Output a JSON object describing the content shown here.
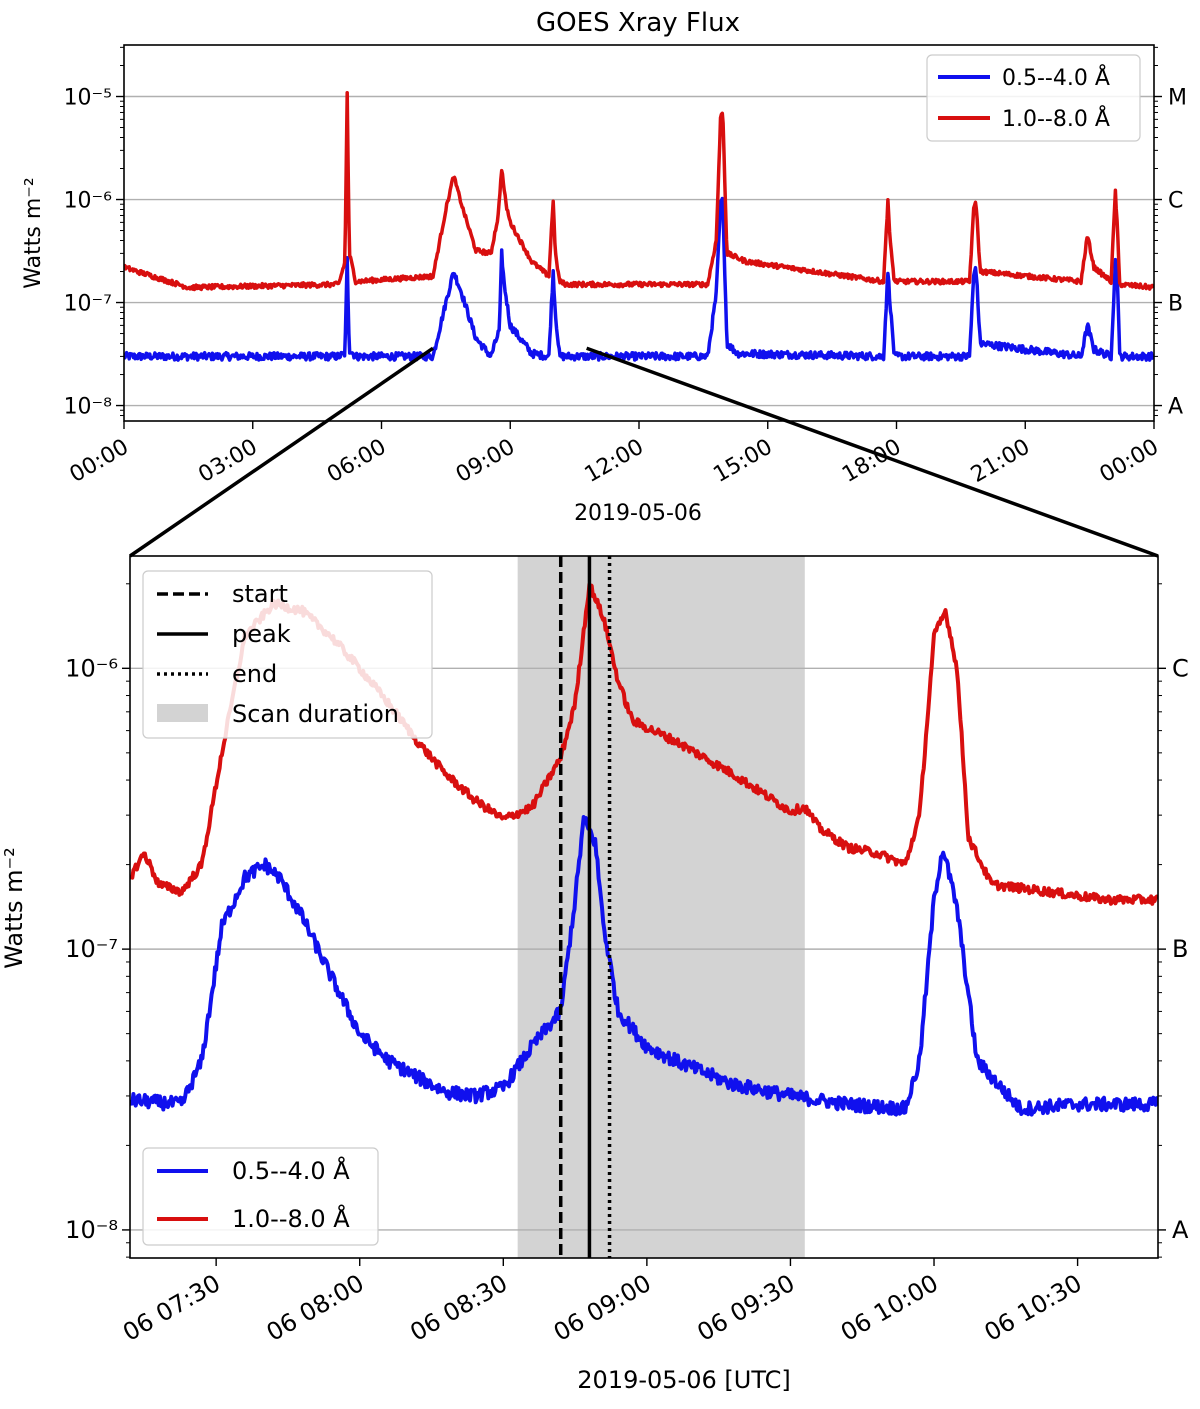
{
  "figure": {
    "colors": {
      "blue": "#1010ee",
      "red": "#d80f0f",
      "grid": "#b0b0b0",
      "shade": "#d3d3d3",
      "axis": "#000000"
    },
    "upper": {
      "title": "GOES Xray Flux",
      "ylabel": "Watts m⁻²",
      "xlabel": "2019-05-06",
      "x_range_hours": [
        0,
        24
      ],
      "y_range_log10": [
        -8.15,
        -4.5
      ],
      "y_ticks": [
        {
          "exp": -8,
          "label": "10⁻⁸"
        },
        {
          "exp": -7,
          "label": "10⁻⁷"
        },
        {
          "exp": -6,
          "label": "10⁻⁶"
        },
        {
          "exp": -5,
          "label": "10⁻⁵"
        }
      ],
      "x_ticks": [
        {
          "h": 0,
          "label": "00:00"
        },
        {
          "h": 3,
          "label": "03:00"
        },
        {
          "h": 6,
          "label": "06:00"
        },
        {
          "h": 9,
          "label": "09:00"
        },
        {
          "h": 12,
          "label": "12:00"
        },
        {
          "h": 15,
          "label": "15:00"
        },
        {
          "h": 18,
          "label": "18:00"
        },
        {
          "h": 21,
          "label": "21:00"
        },
        {
          "h": 24,
          "label": "00:00"
        }
      ],
      "class_ticks": [
        {
          "exp": -8,
          "label": "A"
        },
        {
          "exp": -7,
          "label": "B"
        },
        {
          "exp": -6,
          "label": "C"
        },
        {
          "exp": -5,
          "label": "M"
        }
      ],
      "legend": {
        "placement": "top-right",
        "entries": [
          "0.5--4.0 Å",
          "1.0--8.0 Å"
        ]
      }
    },
    "lower": {
      "ylabel": "Watts m⁻²",
      "xlabel": "2019-05-06 [UTC]",
      "x_range_hours": [
        7.2,
        10.78
      ],
      "y_range_log10": [
        -8.1,
        -5.6
      ],
      "y_ticks": [
        {
          "exp": -8,
          "label": "10⁻⁸"
        },
        {
          "exp": -7,
          "label": "10⁻⁷"
        },
        {
          "exp": -6,
          "label": "10⁻⁶"
        }
      ],
      "x_ticks": [
        {
          "h": 7.5,
          "label": "06 07:30"
        },
        {
          "h": 8.0,
          "label": "06 08:00"
        },
        {
          "h": 8.5,
          "label": "06 08:30"
        },
        {
          "h": 9.0,
          "label": "06 09:00"
        },
        {
          "h": 9.5,
          "label": "06 09:30"
        },
        {
          "h": 10.0,
          "label": "06 10:00"
        },
        {
          "h": 10.5,
          "label": "06 10:30"
        }
      ],
      "class_ticks": [
        {
          "exp": -8,
          "label": "A"
        },
        {
          "exp": -7,
          "label": "B"
        },
        {
          "exp": -6,
          "label": "C"
        }
      ],
      "scan_span_hours": [
        8.55,
        9.55
      ],
      "event_lines": [
        {
          "h": 8.7,
          "style": "dashed"
        },
        {
          "h": 8.8,
          "style": "solid"
        },
        {
          "h": 8.87,
          "style": "dotted"
        }
      ],
      "legend_events": {
        "placement": "top-left",
        "entries": [
          "start",
          "peak",
          "end",
          "Scan duration"
        ]
      },
      "legend_series": {
        "placement": "bottom-left",
        "entries": [
          "0.5--4.0 Å",
          "1.0--8.0 Å"
        ]
      }
    },
    "zoom_range_hours": [
      7.2,
      10.78
    ]
  },
  "chart_data": [
    {
      "type": "line",
      "title": "GOES Xray Flux",
      "xlabel": "2019-05-06",
      "ylabel": "Watts m⁻²",
      "xscale": "time (hours UTC)",
      "yscale": "log",
      "xlim": [
        0,
        24
      ],
      "ylim": [
        7e-09,
        3.2e-05
      ],
      "series": [
        {
          "name": "0.5--4.0 Å",
          "color": "#1010ee",
          "baseline": 3e-08,
          "x": [
            0,
            5.0,
            5.15,
            5.2,
            5.25,
            5.4,
            7.2,
            7.5,
            7.68,
            7.85,
            8.2,
            8.55,
            8.75,
            8.8,
            8.86,
            9.0,
            9.5,
            9.9,
            10.0,
            10.05,
            10.15,
            10.3,
            13.6,
            13.8,
            13.9,
            13.95,
            14.05,
            14.3,
            17.7,
            17.8,
            17.85,
            17.95,
            19.7,
            19.8,
            19.85,
            19.95,
            22.3,
            22.45,
            22.6,
            23.0,
            23.1,
            23.15,
            23.2,
            24.0
          ],
          "y": [
            3e-08,
            3e-08,
            3.2e-08,
            2.6e-07,
            3.5e-08,
            3e-08,
            3e-08,
            1e-07,
            2e-07,
            1.3e-07,
            4.5e-08,
            3e-08,
            5.5e-08,
            3e-07,
            1.5e-07,
            6e-08,
            3.2e-08,
            3e-08,
            2e-07,
            8e-08,
            3e-08,
            3e-08,
            3e-08,
            1.2e-07,
            9e-07,
            1e-06,
            4e-08,
            3.2e-08,
            3e-08,
            2e-07,
            1e-07,
            3e-08,
            3e-08,
            1.8e-07,
            2.3e-07,
            4e-08,
            3e-08,
            6e-08,
            3.5e-08,
            3e-08,
            2.5e-07,
            1.8e-07,
            3e-08,
            3e-08
          ]
        },
        {
          "name": "1.0--8.0 Å",
          "color": "#d80f0f",
          "baseline": 1.4e-07,
          "x": [
            0,
            1.5,
            5.0,
            5.15,
            5.2,
            5.25,
            5.4,
            7.2,
            7.5,
            7.68,
            7.9,
            8.2,
            8.55,
            8.72,
            8.8,
            8.9,
            9.0,
            9.5,
            9.9,
            10.0,
            10.05,
            10.15,
            10.3,
            13.6,
            13.8,
            13.9,
            13.95,
            14.05,
            14.5,
            17.7,
            17.8,
            17.85,
            17.95,
            19.7,
            19.8,
            19.85,
            19.95,
            22.3,
            22.45,
            22.6,
            23.0,
            23.1,
            23.15,
            23.2,
            24.0
          ],
          "y": [
            2.2e-07,
            1.4e-07,
            1.5e-07,
            2.5e-07,
            1.1e-05,
            3e-07,
            1.6e-07,
            1.8e-07,
            8e-07,
            1.7e-06,
            8e-07,
            3.2e-07,
            3e-07,
            7e-07,
            2e-06,
            9e-07,
            6e-07,
            2.5e-07,
            1.8e-07,
            1e-06,
            3e-07,
            1.6e-07,
            1.5e-07,
            1.5e-07,
            4e-07,
            6e-06,
            7.5e-06,
            3e-07,
            2.5e-07,
            1.6e-07,
            1e-06,
            4e-07,
            1.6e-07,
            1.6e-07,
            8e-07,
            1e-06,
            2e-07,
            1.6e-07,
            4.5e-07,
            2.2e-07,
            1.6e-07,
            1.2e-06,
            5e-07,
            1.5e-07,
            1.4e-07
          ]
        }
      ]
    },
    {
      "type": "line",
      "xlabel": "2019-05-06 [UTC]",
      "ylabel": "Watts m⁻²",
      "xscale": "time (hours UTC)",
      "yscale": "log",
      "xlim": [
        7.2,
        10.78
      ],
      "ylim": [
        8e-09,
        2.5e-06
      ],
      "series": [
        {
          "name": "0.5--4.0 Å",
          "color": "#1010ee",
          "x": [
            7.2,
            7.38,
            7.45,
            7.52,
            7.6,
            7.67,
            7.72,
            7.8,
            7.9,
            8.0,
            8.1,
            8.2,
            8.3,
            8.4,
            8.5,
            8.55,
            8.6,
            8.7,
            8.75,
            8.78,
            8.82,
            8.85,
            8.9,
            9.0,
            9.1,
            9.3,
            9.5,
            9.7,
            9.9,
            9.95,
            10.0,
            10.03,
            10.08,
            10.15,
            10.3,
            10.5,
            10.78
          ],
          "y": [
            2.9e-08,
            2.8e-08,
            4e-08,
            1.2e-07,
            1.8e-07,
            2e-07,
            1.8e-07,
            1.3e-07,
            8e-08,
            5e-08,
            4e-08,
            3.5e-08,
            3.1e-08,
            3e-08,
            3.2e-08,
            3.8e-08,
            4.5e-08,
            6e-08,
            1.5e-07,
            2.9e-07,
            2.4e-07,
            1.2e-07,
            6e-08,
            4.5e-08,
            4e-08,
            3.3e-08,
            3e-08,
            2.8e-08,
            2.7e-08,
            4e-08,
            1.5e-07,
            2.3e-07,
            1.4e-07,
            4e-08,
            2.7e-08,
            2.8e-08,
            2.8e-08
          ]
        },
        {
          "name": "1.0--8.0 Å",
          "color": "#d80f0f",
          "x": [
            7.2,
            7.25,
            7.3,
            7.38,
            7.45,
            7.52,
            7.6,
            7.7,
            7.8,
            7.9,
            8.0,
            8.1,
            8.2,
            8.3,
            8.4,
            8.5,
            8.6,
            8.7,
            8.75,
            8.8,
            8.85,
            8.9,
            8.95,
            9.1,
            9.3,
            9.5,
            9.55,
            9.6,
            9.7,
            9.8,
            9.9,
            9.95,
            10.0,
            10.04,
            10.08,
            10.12,
            10.2,
            10.4,
            10.6,
            10.78
          ],
          "y": [
            1.8e-07,
            2.2e-07,
            1.7e-07,
            1.6e-07,
            2e-07,
            5e-07,
            1.3e-06,
            1.7e-06,
            1.6e-06,
            1.3e-06,
            1e-06,
            7.5e-07,
            5.5e-07,
            4.2e-07,
            3.4e-07,
            2.9e-07,
            3.2e-07,
            4.8e-07,
            7.5e-07,
            2e-06,
            1.5e-06,
            9e-07,
            6.5e-07,
            5.5e-07,
            4.2e-07,
            3.1e-07,
            3.2e-07,
            2.7e-07,
            2.3e-07,
            2.2e-07,
            2e-07,
            3e-07,
            1.3e-06,
            1.6e-06,
            1e-06,
            2.5e-07,
            1.7e-07,
            1.6e-07,
            1.5e-07,
            1.5e-07
          ]
        }
      ]
    }
  ]
}
